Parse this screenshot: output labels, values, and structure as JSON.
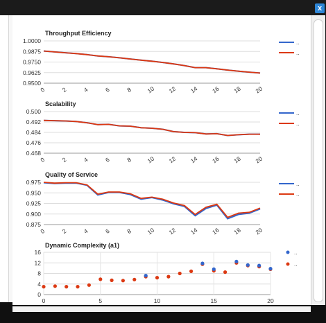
{
  "window": {
    "close_label": "x"
  },
  "legend": {
    "blue": "..",
    "red": "..",
    "blue_color": "#3366cc",
    "red_color": "#dc3912"
  },
  "chart_data": [
    {
      "type": "line",
      "title": "Throughput Efficiency",
      "x": [
        0,
        1,
        2,
        3,
        4,
        5,
        6,
        7,
        8,
        9,
        10,
        11,
        12,
        13,
        14,
        15,
        16,
        17,
        18,
        19,
        20
      ],
      "series": [
        {
          "values": [
            0.988,
            0.987,
            0.986,
            0.985,
            0.9838,
            0.9822,
            0.9812,
            0.98,
            0.9786,
            0.9772,
            0.976,
            0.9745,
            0.9728,
            0.9708,
            0.9684,
            0.9684,
            0.967,
            0.9655,
            0.9642,
            0.963,
            0.962
          ]
        },
        {
          "values": [
            0.988,
            0.987,
            0.986,
            0.985,
            0.9838,
            0.9822,
            0.9812,
            0.98,
            0.9786,
            0.9772,
            0.976,
            0.9745,
            0.9728,
            0.9708,
            0.9684,
            0.9684,
            0.967,
            0.9655,
            0.9642,
            0.963,
            0.962
          ]
        }
      ],
      "yticks": [
        "1.0000",
        "0.9875",
        "0.9750",
        "0.9625",
        "0.9500"
      ],
      "xticks": [
        "0",
        "2",
        "4",
        "6",
        "8",
        "10",
        "12",
        "14",
        "16",
        "18",
        "20"
      ],
      "ylim": [
        0.95,
        1.0
      ]
    },
    {
      "type": "line",
      "title": "Scalability",
      "x": [
        0,
        1,
        2,
        3,
        4,
        5,
        6,
        7,
        8,
        9,
        10,
        11,
        12,
        13,
        14,
        15,
        16,
        17,
        18,
        19,
        20
      ],
      "series": [
        {
          "values": [
            0.4932,
            0.493,
            0.4928,
            0.4924,
            0.4914,
            0.49,
            0.4902,
            0.489,
            0.4888,
            0.4876,
            0.4872,
            0.4864,
            0.4846,
            0.484,
            0.4838,
            0.4828,
            0.483,
            0.4816,
            0.4822,
            0.4826,
            0.4826
          ]
        },
        {
          "values": [
            0.4932,
            0.493,
            0.4928,
            0.4924,
            0.4914,
            0.49,
            0.4902,
            0.489,
            0.4888,
            0.4876,
            0.4872,
            0.4864,
            0.4846,
            0.484,
            0.4838,
            0.4828,
            0.483,
            0.4816,
            0.4822,
            0.4826,
            0.4826
          ]
        }
      ],
      "yticks": [
        "0.500",
        "0.492",
        "0.484",
        "0.476",
        "0.468"
      ],
      "xticks": [
        "0",
        "2",
        "4",
        "6",
        "8",
        "10",
        "12",
        "14",
        "16",
        "18",
        "20"
      ],
      "ylim": [
        0.468,
        0.5
      ]
    },
    {
      "type": "line",
      "title": "Quality of Service",
      "x": [
        0,
        1,
        2,
        3,
        4,
        5,
        6,
        7,
        8,
        9,
        10,
        11,
        12,
        13,
        14,
        15,
        16,
        17,
        18,
        19,
        20
      ],
      "series": [
        {
          "values": [
            0.974,
            0.972,
            0.973,
            0.973,
            0.968,
            0.945,
            0.951,
            0.951,
            0.946,
            0.935,
            0.939,
            0.933,
            0.924,
            0.918,
            0.896,
            0.913,
            0.921,
            0.889,
            0.899,
            0.902,
            0.912
          ]
        },
        {
          "values": [
            0.975,
            0.973,
            0.974,
            0.974,
            0.969,
            0.947,
            0.952,
            0.952,
            0.948,
            0.937,
            0.94,
            0.935,
            0.926,
            0.92,
            0.899,
            0.916,
            0.923,
            0.892,
            0.902,
            0.904,
            0.914
          ]
        }
      ],
      "yticks": [
        "0.975",
        "0.950",
        "0.925",
        "0.900",
        "0.875"
      ],
      "xticks": [
        "0",
        "2",
        "4",
        "6",
        "8",
        "10",
        "12",
        "14",
        "16",
        "18",
        "20"
      ],
      "ylim": [
        0.875,
        0.975
      ]
    },
    {
      "type": "scatter",
      "title": "Dynamic Complexity (a1)",
      "series": [
        {
          "x": [
            9,
            14,
            15,
            17,
            18,
            19,
            20
          ],
          "y": [
            7.2,
            11.8,
            9.6,
            12.5,
            11.2,
            11.0,
            9.8
          ]
        },
        {
          "x": [
            0,
            1,
            2,
            3,
            4,
            5,
            6,
            7,
            8,
            9,
            10,
            11,
            12,
            13,
            14,
            15,
            16,
            17,
            18,
            19,
            20
          ],
          "y": [
            3.0,
            3.2,
            3.0,
            3.0,
            3.6,
            5.8,
            5.4,
            5.3,
            5.7,
            6.8,
            6.4,
            6.8,
            8.0,
            8.8,
            11.5,
            9.0,
            8.5,
            12.0,
            11.0,
            10.6,
            9.6
          ]
        }
      ],
      "yticks": [
        "16",
        "12",
        "8",
        "4",
        "0"
      ],
      "xticks": [
        "0",
        "5",
        "10",
        "15",
        "20"
      ],
      "xlim": [
        0,
        20
      ],
      "ylim": [
        0,
        16
      ]
    }
  ]
}
